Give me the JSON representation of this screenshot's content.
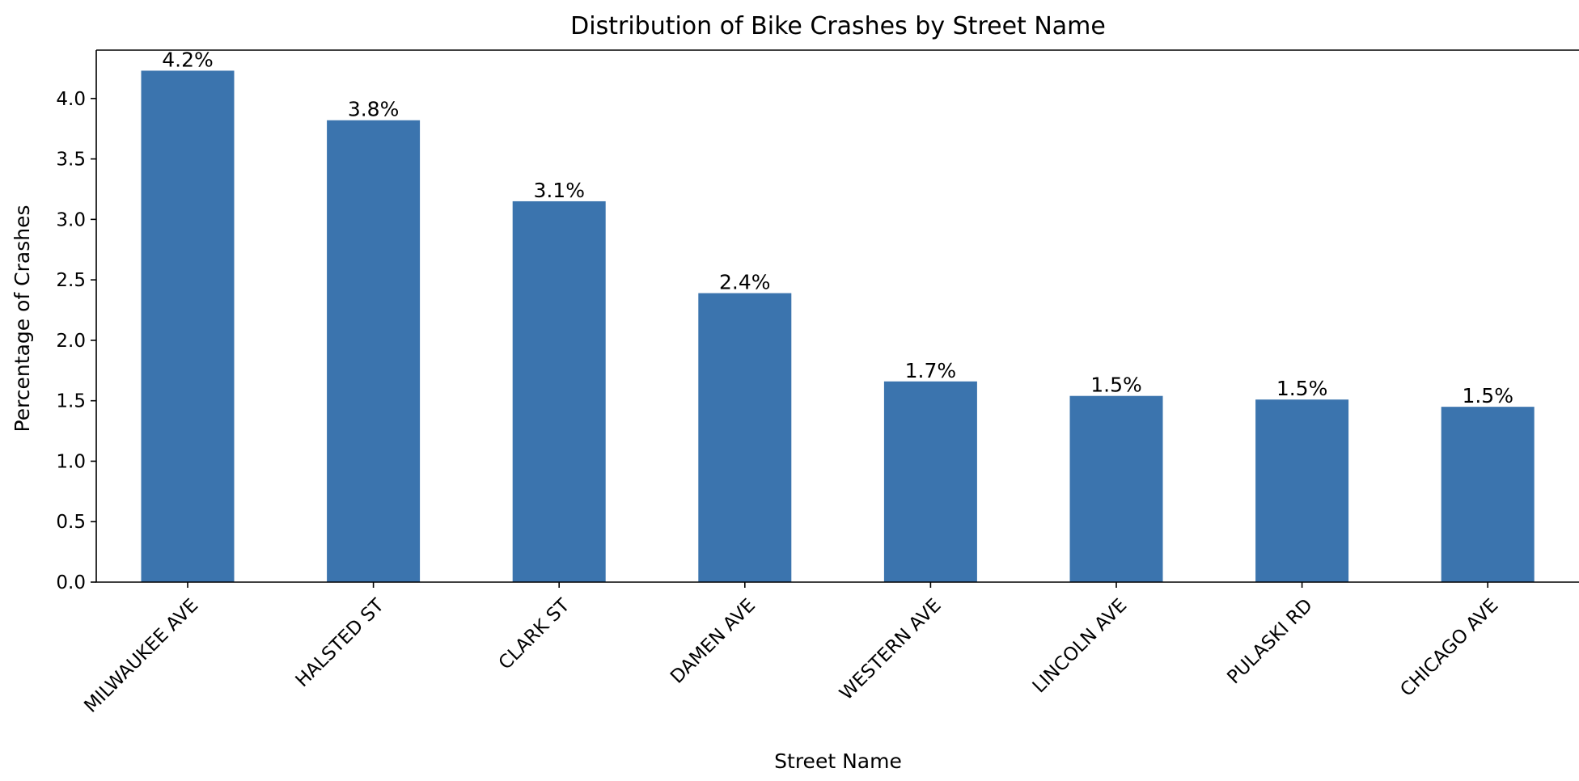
{
  "chart_data": {
    "type": "bar",
    "title": "Distribution of Bike Crashes by Street Name",
    "xlabel": "Street Name",
    "ylabel": "Percentage of Crashes",
    "categories": [
      "MILWAUKEE AVE",
      "HALSTED ST",
      "CLARK ST",
      "DAMEN AVE",
      "WESTERN AVE",
      "LINCOLN AVE",
      "PULASKI RD",
      "CHICAGO AVE"
    ],
    "values": [
      4.23,
      3.82,
      3.15,
      2.39,
      1.66,
      1.54,
      1.51,
      1.45
    ],
    "value_labels": [
      "4.2%",
      "3.8%",
      "3.1%",
      "2.4%",
      "1.7%",
      "1.5%",
      "1.5%",
      "1.5%"
    ],
    "ylim": [
      0,
      4.4
    ],
    "yticks": [
      "0.0",
      "0.5",
      "1.0",
      "1.5",
      "2.0",
      "2.5",
      "3.0",
      "3.5",
      "4.0"
    ],
    "bar_color": "#3b74ae",
    "grid": false,
    "legend": "none"
  }
}
